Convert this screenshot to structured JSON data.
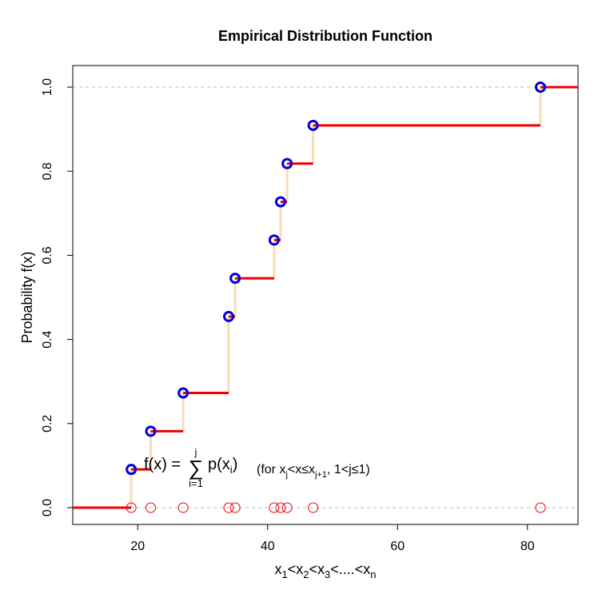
{
  "chart_data": {
    "type": "step",
    "title": "Empirical Distribution Function",
    "ylabel": "Probability f(x)",
    "xlabel": {
      "parts": [
        "x",
        "1",
        "<x",
        "2",
        "<x",
        "3",
        "<....<x",
        "n"
      ]
    },
    "xlim": [
      11,
      90
    ],
    "ylim": [
      0,
      1
    ],
    "x_ticks": [
      20,
      40,
      60,
      80
    ],
    "y_ticks": [
      0.0,
      0.2,
      0.4,
      0.6,
      0.8,
      1.0
    ],
    "y_tick_labels": [
      "0.0",
      "0.2",
      "0.4",
      "0.6",
      "0.8",
      "1.0"
    ],
    "gridlines_y": [
      0.0,
      1.0
    ],
    "x": [
      19,
      22,
      27,
      34,
      35,
      41,
      42,
      43,
      47,
      82
    ],
    "y": [
      0.0909,
      0.1818,
      0.2727,
      0.4545,
      0.5455,
      0.6364,
      0.7273,
      0.8182,
      0.9091,
      1.0
    ],
    "colors": {
      "horizontal_steps": "#ee0000",
      "vertical_steps": "#f5deb3",
      "points": "#0000dd",
      "rug_points": "#ee0000",
      "grid": "#bbbbbb"
    },
    "annotation": {
      "lhs": "f(x) =",
      "sum_upper": "j",
      "sum_lower": "i=1",
      "sum_symbol": "∑",
      "term": "p(x",
      "term_sub": "i",
      "term_close": ")",
      "condition_open": "(for  x",
      "condition_sub1": "j",
      "condition_mid": "<x≤x",
      "condition_sub2": "j+1",
      "condition_close": ", 1<j≤1)"
    }
  }
}
